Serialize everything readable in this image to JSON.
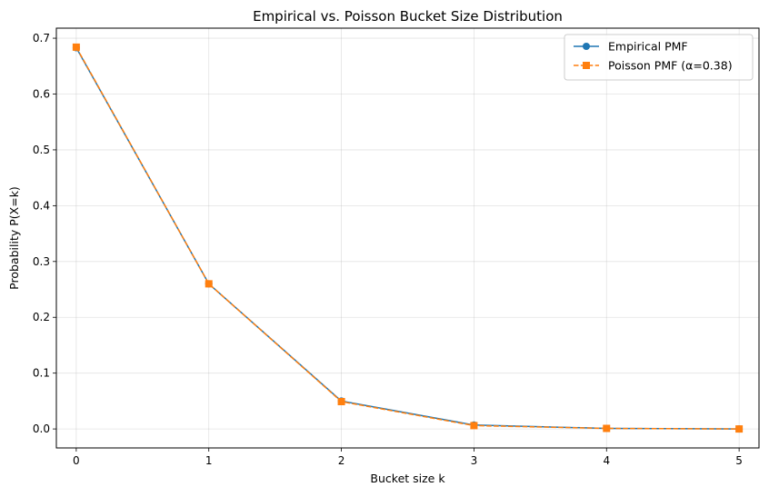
{
  "chart_data": {
    "type": "line",
    "title": "Empirical vs. Poisson Bucket Size Distribution",
    "xlabel": "Bucket size k",
    "ylabel": "Probability P(X=k)",
    "x": [
      0,
      1,
      2,
      3,
      4,
      5
    ],
    "xlim": [
      -0.15,
      5.15
    ],
    "ylim": [
      -0.034,
      0.718
    ],
    "xticks": [
      "0",
      "1",
      "2",
      "3",
      "4",
      "5"
    ],
    "yticks": [
      "0.0",
      "0.1",
      "0.2",
      "0.3",
      "0.4",
      "0.5",
      "0.6",
      "0.7"
    ],
    "grid": true,
    "legend_position": "top-right",
    "series": [
      {
        "name": "Empirical PMF",
        "values": [
          0.683,
          0.26,
          0.05,
          0.007,
          0.001,
          0.0
        ],
        "color": "#1f77b4",
        "marker": "circle",
        "linestyle": "solid"
      },
      {
        "name": "Poisson PMF (α=0.38)",
        "values": [
          0.684,
          0.26,
          0.049,
          0.006,
          0.001,
          0.0
        ],
        "color": "#ff7f0e",
        "marker": "square",
        "linestyle": "dashed"
      }
    ]
  }
}
